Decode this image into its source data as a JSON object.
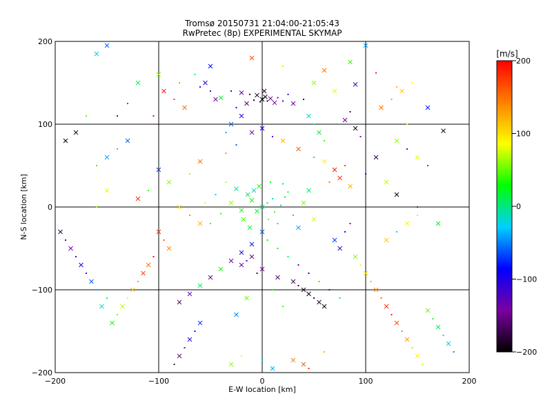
{
  "chart_data": {
    "type": "scatter",
    "title": "Tromsø 20150731 21:04:00-21:05:43",
    "subtitle": "RwPretec (8p) EXPERIMENTAL SKYMAP",
    "xlabel": "E-W location [km]",
    "ylabel": "N-S location [km]",
    "xlim": [
      -200,
      200
    ],
    "ylim": [
      -200,
      200
    ],
    "xticks": [
      -200,
      -100,
      0,
      100,
      200
    ],
    "yticks": [
      -200,
      -100,
      0,
      100,
      200
    ],
    "xtick_labels": [
      "−200",
      "−100",
      "0",
      "100",
      "200"
    ],
    "ytick_labels": [
      "−200",
      "−100",
      "0",
      "100",
      "200"
    ],
    "grid": true,
    "marker_types": [
      "dot",
      "cross"
    ],
    "colorbar": {
      "unit": "[m/s]",
      "range": [
        -200,
        200
      ],
      "ticks": [
        200,
        100,
        0,
        -100,
        -200
      ],
      "tick_labels": [
        "200",
        "100",
        "0",
        "−100",
        "−200"
      ],
      "colormap": [
        "#000000",
        "#7a00a0",
        "#0000ff",
        "#00d0ff",
        "#00ff00",
        "#ffff00",
        "#ff8000",
        "#ff0000"
      ]
    },
    "points": [
      [
        0,
        130,
        -200,
        "cross"
      ],
      [
        5,
        128,
        -190,
        "dot"
      ],
      [
        -5,
        135,
        -180,
        "cross"
      ],
      [
        3,
        133,
        -195,
        "cross"
      ],
      [
        -2,
        127,
        -170,
        "dot"
      ],
      [
        8,
        131,
        -160,
        "cross"
      ],
      [
        -8,
        129,
        -200,
        "dot"
      ],
      [
        12,
        126,
        -150,
        "cross"
      ],
      [
        -12,
        136,
        -175,
        "dot"
      ],
      [
        2,
        140,
        -185,
        "cross"
      ],
      [
        15,
        132,
        -140,
        "dot"
      ],
      [
        -15,
        125,
        -165,
        "cross"
      ],
      [
        20,
        128,
        -120,
        "dot"
      ],
      [
        -20,
        138,
        -130,
        "cross"
      ],
      [
        25,
        136,
        -100,
        "dot"
      ],
      [
        30,
        125,
        -150,
        "cross"
      ],
      [
        40,
        130,
        -180,
        "dot"
      ],
      [
        -30,
        140,
        -110,
        "dot"
      ],
      [
        -40,
        132,
        20,
        "cross"
      ],
      [
        50,
        150,
        60,
        "cross"
      ],
      [
        -60,
        145,
        -80,
        "dot"
      ],
      [
        70,
        140,
        80,
        "cross"
      ],
      [
        90,
        148,
        -120,
        "cross"
      ],
      [
        -80,
        150,
        40,
        "dot"
      ],
      [
        60,
        165,
        150,
        "cross"
      ],
      [
        -100,
        160,
        60,
        "cross"
      ],
      [
        110,
        162,
        190,
        "dot"
      ],
      [
        -120,
        150,
        10,
        "cross"
      ],
      [
        130,
        145,
        120,
        "dot"
      ],
      [
        -130,
        125,
        -60,
        "dot"
      ],
      [
        85,
        175,
        40,
        "cross"
      ],
      [
        -50,
        170,
        -90,
        "cross"
      ],
      [
        20,
        170,
        100,
        "dot"
      ],
      [
        -10,
        180,
        170,
        "cross"
      ],
      [
        100,
        195,
        -40,
        "cross"
      ],
      [
        -150,
        195,
        -60,
        "cross"
      ],
      [
        -160,
        185,
        -30,
        "cross"
      ],
      [
        -170,
        110,
        50,
        "dot"
      ],
      [
        160,
        120,
        -80,
        "cross"
      ],
      [
        -180,
        90,
        -190,
        "cross"
      ],
      [
        -190,
        80,
        -200,
        "cross"
      ],
      [
        175,
        92,
        -190,
        "cross"
      ],
      [
        140,
        100,
        80,
        "dot"
      ],
      [
        -140,
        110,
        -110,
        "dot"
      ],
      [
        0,
        95,
        -90,
        "cross"
      ],
      [
        10,
        85,
        -120,
        "dot"
      ],
      [
        -10,
        90,
        -140,
        "cross"
      ],
      [
        20,
        80,
        120,
        "cross"
      ],
      [
        -25,
        75,
        -60,
        "dot"
      ],
      [
        35,
        70,
        160,
        "cross"
      ],
      [
        -35,
        65,
        130,
        "dot"
      ],
      [
        50,
        60,
        -20,
        "dot"
      ],
      [
        60,
        55,
        90,
        "cross"
      ],
      [
        70,
        45,
        190,
        "cross"
      ],
      [
        75,
        35,
        180,
        "cross"
      ],
      [
        80,
        50,
        170,
        "dot"
      ],
      [
        65,
        30,
        150,
        "dot"
      ],
      [
        85,
        25,
        120,
        "cross"
      ],
      [
        -60,
        55,
        150,
        "cross"
      ],
      [
        -70,
        40,
        110,
        "dot"
      ],
      [
        -90,
        30,
        60,
        "cross"
      ],
      [
        -110,
        20,
        40,
        "dot"
      ],
      [
        -120,
        10,
        180,
        "cross"
      ],
      [
        -100,
        45,
        -70,
        "cross"
      ],
      [
        100,
        40,
        -100,
        "dot"
      ],
      [
        120,
        30,
        70,
        "cross"
      ],
      [
        110,
        60,
        -180,
        "cross"
      ],
      [
        130,
        15,
        -200,
        "cross"
      ],
      [
        -150,
        20,
        80,
        "cross"
      ],
      [
        -160,
        0,
        60,
        "dot"
      ],
      [
        150,
        0,
        -150,
        "dot"
      ],
      [
        170,
        -20,
        20,
        "cross"
      ],
      [
        0,
        0,
        0,
        "cross"
      ],
      [
        5,
        5,
        10,
        "dot"
      ],
      [
        -5,
        -5,
        20,
        "cross"
      ],
      [
        10,
        10,
        -10,
        "dot"
      ],
      [
        -10,
        8,
        30,
        "cross"
      ],
      [
        12,
        -6,
        40,
        "dot"
      ],
      [
        -14,
        15,
        5,
        "cross"
      ],
      [
        18,
        2,
        -20,
        "dot"
      ],
      [
        -20,
        -4,
        25,
        "cross"
      ],
      [
        22,
        12,
        15,
        "dot"
      ],
      [
        -8,
        20,
        -15,
        "cross"
      ],
      [
        6,
        -15,
        50,
        "dot"
      ],
      [
        -3,
        25,
        35,
        "cross"
      ],
      [
        15,
        -20,
        0,
        "dot"
      ],
      [
        -18,
        -15,
        45,
        "cross"
      ],
      [
        25,
        18,
        10,
        "dot"
      ],
      [
        -25,
        22,
        -5,
        "cross"
      ],
      [
        30,
        -10,
        20,
        "dot"
      ],
      [
        -30,
        5,
        60,
        "cross"
      ],
      [
        8,
        30,
        30,
        "dot"
      ],
      [
        -12,
        -25,
        15,
        "cross"
      ],
      [
        20,
        28,
        -25,
        "dot"
      ],
      [
        40,
        5,
        55,
        "cross"
      ],
      [
        -40,
        -8,
        35,
        "dot"
      ],
      [
        35,
        -25,
        -40,
        "cross"
      ],
      [
        -35,
        30,
        65,
        "dot"
      ],
      [
        45,
        20,
        5,
        "cross"
      ],
      [
        -45,
        15,
        -30,
        "dot"
      ],
      [
        50,
        -15,
        75,
        "cross"
      ],
      [
        -50,
        -20,
        40,
        "dot"
      ],
      [
        0,
        -30,
        -60,
        "cross"
      ],
      [
        5,
        -40,
        30,
        "dot"
      ],
      [
        -10,
        -45,
        -80,
        "cross"
      ],
      [
        15,
        -50,
        20,
        "dot"
      ],
      [
        -20,
        -55,
        -100,
        "cross"
      ],
      [
        25,
        -60,
        10,
        "dot"
      ],
      [
        -30,
        -65,
        -140,
        "cross"
      ],
      [
        35,
        -70,
        -120,
        "dot"
      ],
      [
        -40,
        -75,
        30,
        "cross"
      ],
      [
        45,
        -80,
        -90,
        "dot"
      ],
      [
        -50,
        -85,
        -150,
        "cross"
      ],
      [
        55,
        -90,
        25,
        "dot"
      ],
      [
        -60,
        -95,
        5,
        "cross"
      ],
      [
        65,
        -100,
        -110,
        "dot"
      ],
      [
        -70,
        -105,
        -130,
        "cross"
      ],
      [
        75,
        -110,
        15,
        "dot"
      ],
      [
        -80,
        -115,
        -160,
        "cross"
      ],
      [
        10,
        -100,
        35,
        "dot"
      ],
      [
        -15,
        -110,
        50,
        "cross"
      ],
      [
        20,
        -120,
        40,
        "dot"
      ],
      [
        -25,
        -130,
        -50,
        "cross"
      ],
      [
        30,
        -90,
        -170,
        "cross"
      ],
      [
        35,
        -95,
        -180,
        "dot"
      ],
      [
        40,
        -100,
        -190,
        "cross"
      ],
      [
        45,
        -105,
        -200,
        "cross"
      ],
      [
        50,
        -110,
        -175,
        "dot"
      ],
      [
        55,
        -115,
        -185,
        "cross"
      ],
      [
        60,
        -120,
        -195,
        "cross"
      ],
      [
        -20,
        -70,
        -130,
        "cross"
      ],
      [
        -15,
        -65,
        -110,
        "dot"
      ],
      [
        -10,
        -60,
        -150,
        "cross"
      ],
      [
        -5,
        -80,
        -170,
        "dot"
      ],
      [
        0,
        -75,
        -140,
        "cross"
      ],
      [
        15,
        -85,
        -160,
        "cross"
      ],
      [
        -90,
        -50,
        140,
        "cross"
      ],
      [
        -95,
        -40,
        160,
        "dot"
      ],
      [
        -100,
        -30,
        180,
        "cross"
      ],
      [
        -105,
        -60,
        200,
        "dot"
      ],
      [
        -110,
        -70,
        150,
        "cross"
      ],
      [
        -115,
        -80,
        170,
        "cross"
      ],
      [
        -120,
        -90,
        130,
        "dot"
      ],
      [
        -125,
        -100,
        110,
        "cross"
      ],
      [
        -130,
        -110,
        90,
        "dot"
      ],
      [
        -135,
        -120,
        70,
        "cross"
      ],
      [
        -140,
        -130,
        50,
        "dot"
      ],
      [
        -145,
        -140,
        30,
        "cross"
      ],
      [
        -150,
        -110,
        0,
        "dot"
      ],
      [
        -155,
        -120,
        -20,
        "cross"
      ],
      [
        -160,
        -100,
        -40,
        "dot"
      ],
      [
        -165,
        -90,
        -60,
        "cross"
      ],
      [
        -170,
        -80,
        -80,
        "dot"
      ],
      [
        -175,
        -70,
        -100,
        "cross"
      ],
      [
        -180,
        -60,
        -120,
        "dot"
      ],
      [
        -185,
        -50,
        -140,
        "cross"
      ],
      [
        -190,
        -40,
        -160,
        "dot"
      ],
      [
        -195,
        -30,
        -180,
        "cross"
      ],
      [
        90,
        -60,
        60,
        "cross"
      ],
      [
        95,
        -70,
        80,
        "dot"
      ],
      [
        100,
        -80,
        100,
        "cross"
      ],
      [
        105,
        -90,
        120,
        "dot"
      ],
      [
        110,
        -100,
        140,
        "cross"
      ],
      [
        115,
        -110,
        160,
        "dot"
      ],
      [
        120,
        -120,
        180,
        "cross"
      ],
      [
        125,
        -130,
        200,
        "dot"
      ],
      [
        130,
        -140,
        170,
        "cross"
      ],
      [
        135,
        -150,
        150,
        "dot"
      ],
      [
        140,
        -160,
        130,
        "cross"
      ],
      [
        145,
        -170,
        110,
        "dot"
      ],
      [
        150,
        -180,
        90,
        "cross"
      ],
      [
        155,
        -190,
        70,
        "dot"
      ],
      [
        160,
        -125,
        50,
        "cross"
      ],
      [
        165,
        -135,
        30,
        "dot"
      ],
      [
        170,
        -145,
        10,
        "cross"
      ],
      [
        175,
        -155,
        -10,
        "dot"
      ],
      [
        180,
        -165,
        -30,
        "cross"
      ],
      [
        185,
        -175,
        -50,
        "dot"
      ],
      [
        -60,
        -140,
        -70,
        "cross"
      ],
      [
        -65,
        -150,
        -90,
        "dot"
      ],
      [
        -70,
        -160,
        -110,
        "cross"
      ],
      [
        -75,
        -170,
        -130,
        "dot"
      ],
      [
        -80,
        -180,
        -150,
        "cross"
      ],
      [
        -85,
        -190,
        -170,
        "dot"
      ],
      [
        40,
        -190,
        160,
        "cross"
      ],
      [
        45,
        -195,
        180,
        "dot"
      ],
      [
        30,
        -185,
        140,
        "cross"
      ],
      [
        60,
        -175,
        120,
        "dot"
      ],
      [
        -30,
        -190,
        60,
        "cross"
      ],
      [
        -20,
        -180,
        80,
        "dot"
      ],
      [
        10,
        -195,
        -40,
        "cross"
      ],
      [
        0,
        -185,
        -20,
        "dot"
      ],
      [
        80,
        105,
        -150,
        "cross"
      ],
      [
        85,
        115,
        -170,
        "dot"
      ],
      [
        90,
        95,
        -190,
        "cross"
      ],
      [
        95,
        85,
        -140,
        "dot"
      ],
      [
        -20,
        110,
        -100,
        "cross"
      ],
      [
        -25,
        120,
        -80,
        "dot"
      ],
      [
        -30,
        100,
        -60,
        "cross"
      ],
      [
        -35,
        90,
        -40,
        "dot"
      ],
      [
        45,
        110,
        -20,
        "cross"
      ],
      [
        50,
        100,
        0,
        "dot"
      ],
      [
        55,
        90,
        20,
        "cross"
      ],
      [
        60,
        80,
        40,
        "dot"
      ],
      [
        -45,
        130,
        -140,
        "cross"
      ],
      [
        -50,
        140,
        -120,
        "dot"
      ],
      [
        -55,
        150,
        -100,
        "cross"
      ],
      [
        -65,
        160,
        10,
        "dot"
      ],
      [
        -75,
        120,
        150,
        "cross"
      ],
      [
        -85,
        130,
        170,
        "dot"
      ],
      [
        -95,
        140,
        190,
        "cross"
      ],
      [
        -105,
        110,
        200,
        "dot"
      ],
      [
        115,
        120,
        150,
        "cross"
      ],
      [
        125,
        130,
        130,
        "dot"
      ],
      [
        135,
        140,
        110,
        "cross"
      ],
      [
        145,
        150,
        90,
        "dot"
      ],
      [
        -130,
        80,
        -60,
        "cross"
      ],
      [
        -140,
        70,
        20,
        "dot"
      ],
      [
        -150,
        60,
        -40,
        "cross"
      ],
      [
        -160,
        50,
        40,
        "dot"
      ],
      [
        130,
        80,
        60,
        "cross"
      ],
      [
        140,
        70,
        -120,
        "dot"
      ],
      [
        150,
        60,
        80,
        "cross"
      ],
      [
        160,
        50,
        -60,
        "dot"
      ],
      [
        120,
        -40,
        110,
        "cross"
      ],
      [
        130,
        -30,
        -30,
        "dot"
      ],
      [
        140,
        -20,
        90,
        "cross"
      ],
      [
        150,
        -10,
        70,
        "dot"
      ],
      [
        -60,
        -20,
        120,
        "cross"
      ],
      [
        -70,
        -10,
        140,
        "dot"
      ],
      [
        -80,
        0,
        100,
        "cross"
      ],
      [
        -55,
        5,
        80,
        "dot"
      ],
      [
        70,
        -40,
        -70,
        "cross"
      ],
      [
        80,
        -30,
        -90,
        "dot"
      ],
      [
        75,
        -50,
        -110,
        "cross"
      ],
      [
        85,
        -20,
        -130,
        "dot"
      ]
    ]
  }
}
